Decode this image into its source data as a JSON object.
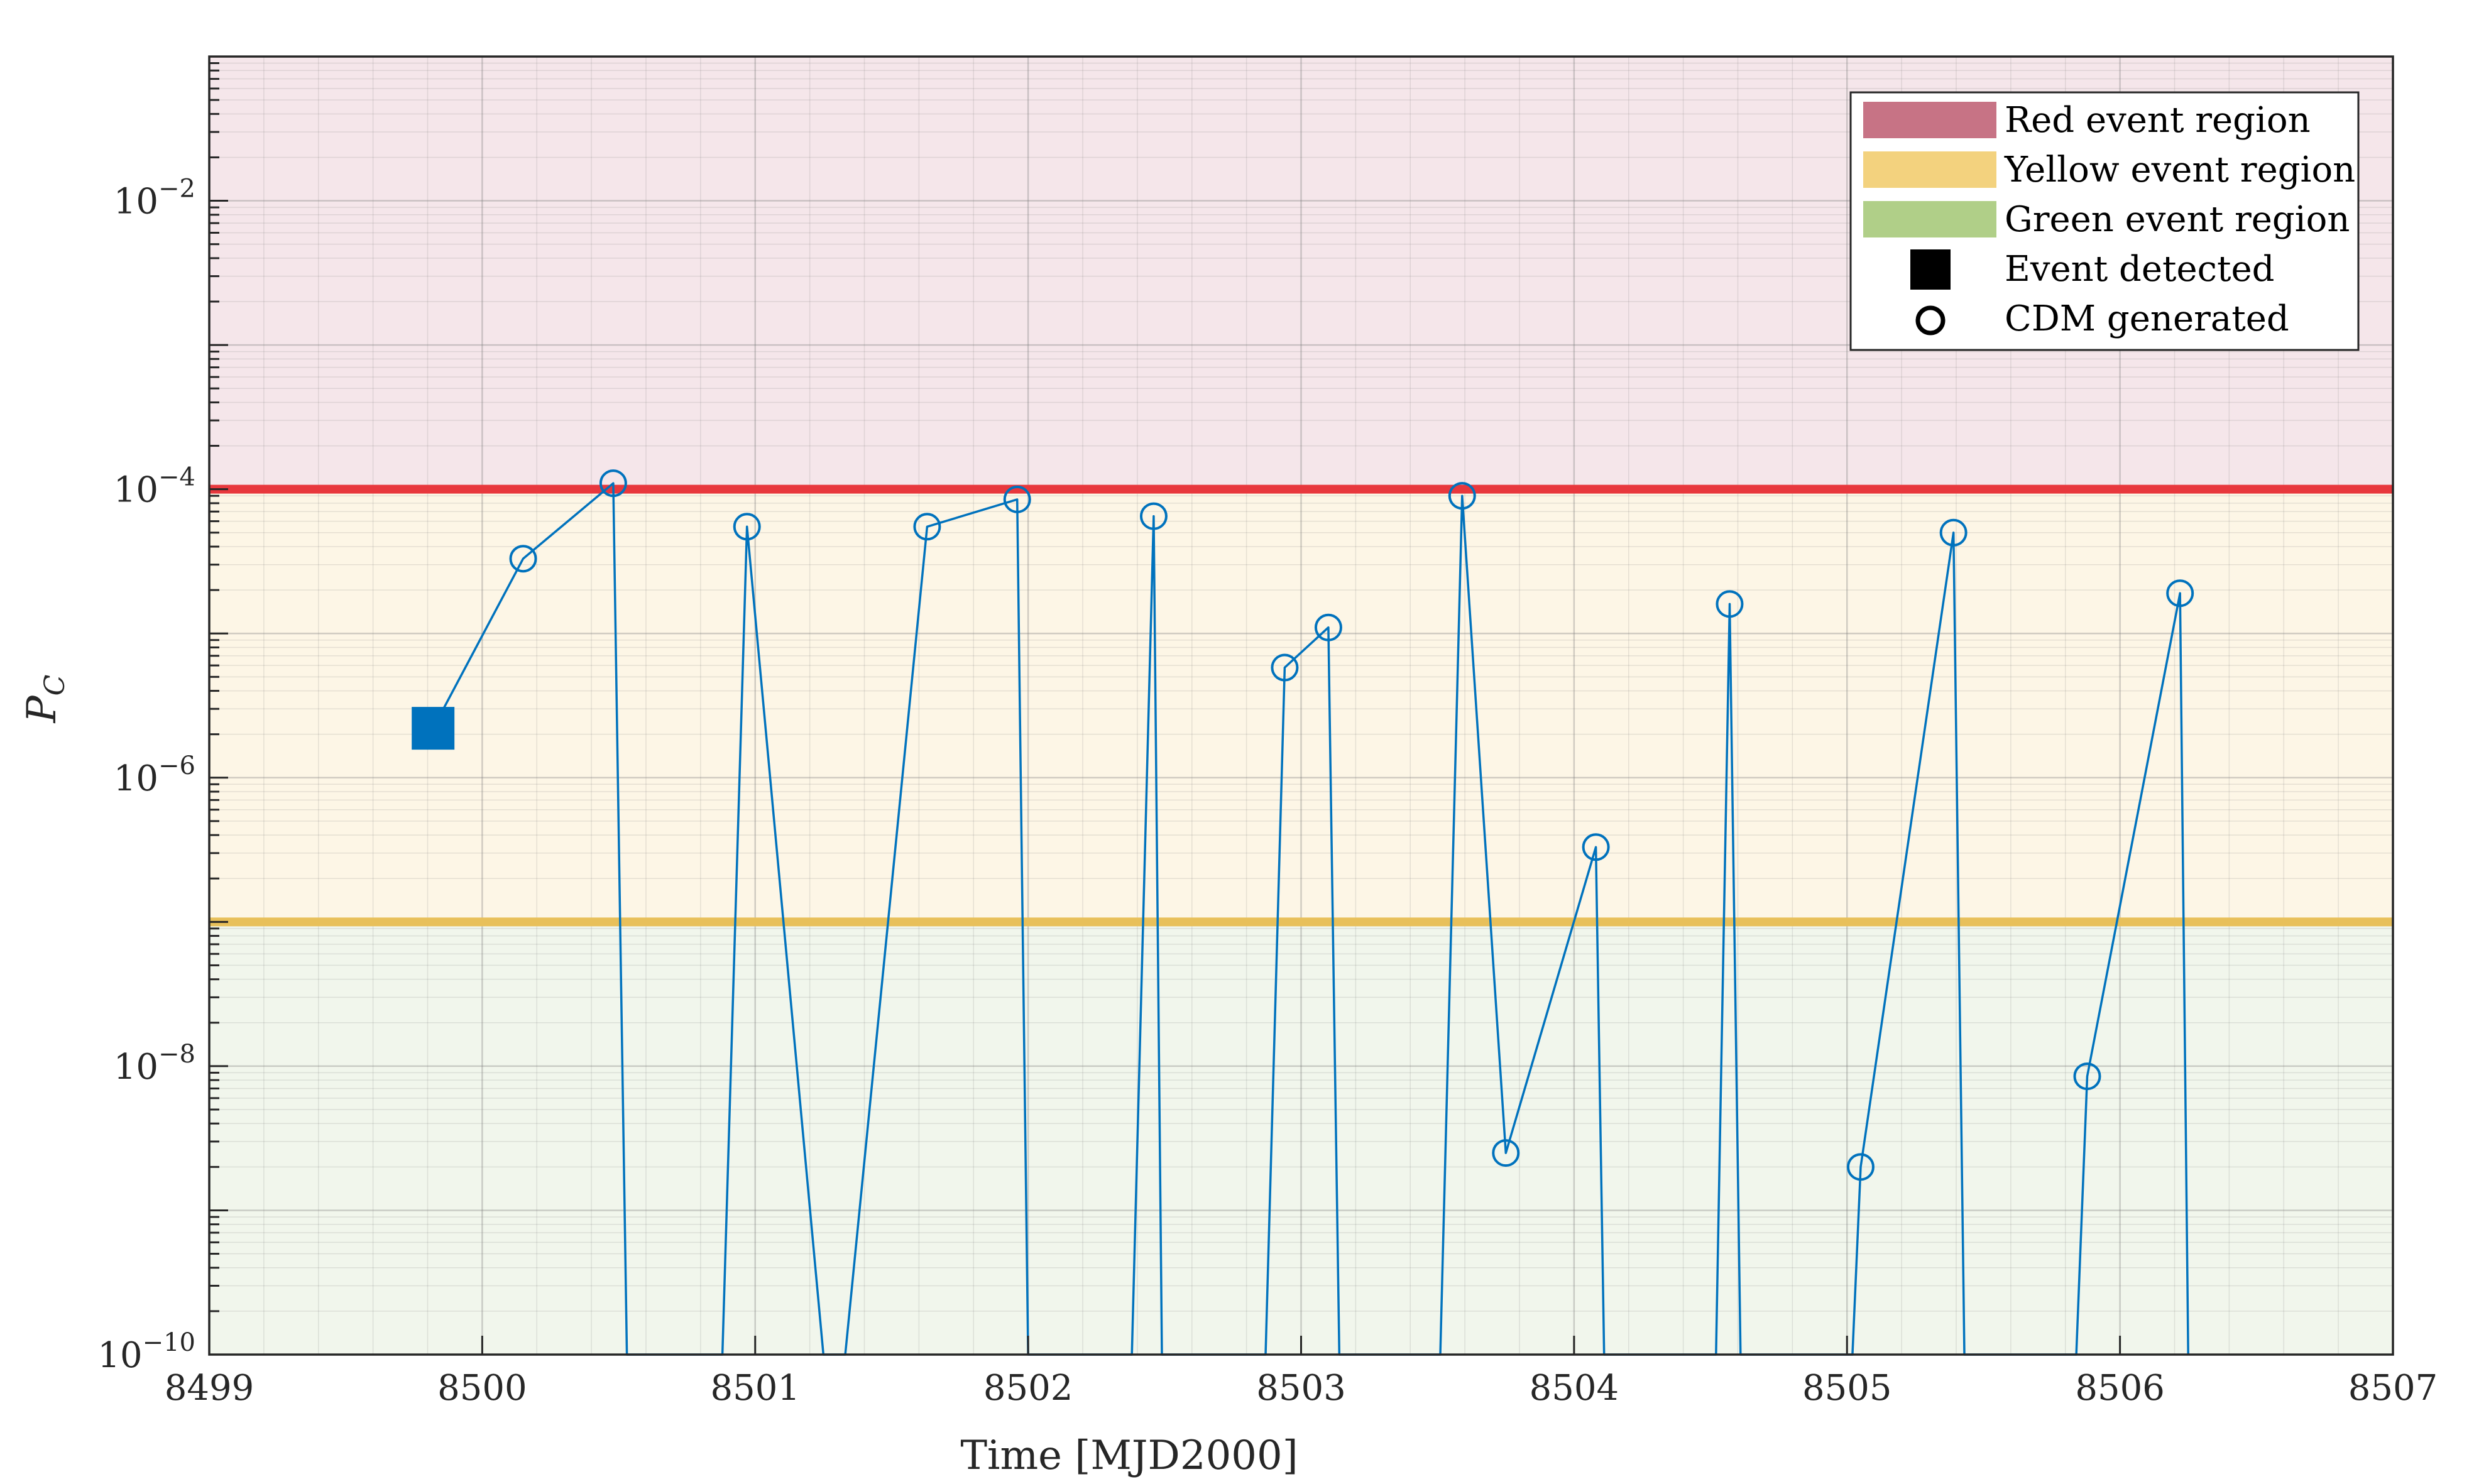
{
  "chart_data": {
    "type": "line",
    "xlabel": "Time [MJD2000]",
    "ylabel": "P",
    "ylabel_subscript": "C",
    "xlim": [
      8499,
      8507
    ],
    "ylim": [
      1e-10,
      0.1
    ],
    "yscale": "log",
    "grid": true,
    "x_ticks": [
      "8499",
      "8500",
      "8501",
      "8502",
      "8503",
      "8504",
      "8505",
      "8506",
      "8507"
    ],
    "y_ticks": [
      {
        "value": 1e-10,
        "base": "10",
        "exp": "−10"
      },
      {
        "value": 1e-08,
        "base": "10",
        "exp": "−8"
      },
      {
        "value": 1e-06,
        "base": "10",
        "exp": "−6"
      },
      {
        "value": 0.0001,
        "base": "10",
        "exp": "−4"
      },
      {
        "value": 0.01,
        "base": "10",
        "exp": "−2"
      }
    ],
    "regions": [
      {
        "name": "Red event region",
        "from": 0.0001,
        "to": 0.1,
        "fill": "#f5e6ea",
        "legend_color": "#c77385"
      },
      {
        "name": "Yellow event region",
        "from": 1e-07,
        "to": 0.0001,
        "fill": "#fdf6e6",
        "legend_color": "#f3d27e"
      },
      {
        "name": "Green event region",
        "from": 1e-10,
        "to": 1e-07,
        "fill": "#f1f6ec",
        "legend_color": "#b0cf88"
      }
    ],
    "thresholds": [
      {
        "value": 0.0001,
        "color": "#e8383d"
      },
      {
        "value": 1e-07,
        "color": "#e8c05a"
      }
    ],
    "series_color": "#0072bd",
    "event_detected": {
      "x": 8499.82,
      "y": 2.2e-06
    },
    "cdm_points": [
      {
        "x": 8500.15,
        "y": 3.3e-05
      },
      {
        "x": 8500.48,
        "y": 0.00011
      },
      {
        "x": 8500.97,
        "y": 5.5e-05
      },
      {
        "x": 8501.63,
        "y": 5.5e-05
      },
      {
        "x": 8501.96,
        "y": 8.5e-05
      },
      {
        "x": 8502.46,
        "y": 6.5e-05
      },
      {
        "x": 8502.94,
        "y": 5.8e-06
      },
      {
        "x": 8503.1,
        "y": 1.1e-05
      },
      {
        "x": 8503.59,
        "y": 9e-05
      },
      {
        "x": 8503.75,
        "y": 2.5e-09
      },
      {
        "x": 8504.08,
        "y": 3.3e-07
      },
      {
        "x": 8504.57,
        "y": 1.6e-05
      },
      {
        "x": 8505.05,
        "y": 2e-09
      },
      {
        "x": 8505.39,
        "y": 5e-05
      },
      {
        "x": 8505.88,
        "y": 8.5e-09
      },
      {
        "x": 8506.22,
        "y": 1.9e-05
      }
    ],
    "line_path": [
      {
        "x": 8499.82,
        "y": 2.2e-06
      },
      {
        "x": 8500.15,
        "y": 3.3e-05
      },
      {
        "x": 8500.48,
        "y": 0.00011
      },
      {
        "x": 8500.53,
        "y": 1e-10
      },
      {
        "x": 8500.88,
        "y": 1e-10
      },
      {
        "x": 8500.97,
        "y": 5.5e-05
      },
      {
        "x": 8501.25,
        "y": 1e-10
      },
      {
        "x": 8501.33,
        "y": 1e-10
      },
      {
        "x": 8501.63,
        "y": 5.5e-05
      },
      {
        "x": 8501.96,
        "y": 8.5e-05
      },
      {
        "x": 8502.0,
        "y": 1e-10
      },
      {
        "x": 8502.38,
        "y": 1e-10
      },
      {
        "x": 8502.46,
        "y": 6.5e-05
      },
      {
        "x": 8502.49,
        "y": 1e-10
      },
      {
        "x": 8502.87,
        "y": 1e-10
      },
      {
        "x": 8502.94,
        "y": 5.8e-06
      },
      {
        "x": 8503.1,
        "y": 1.1e-05
      },
      {
        "x": 8503.14,
        "y": 1e-10
      },
      {
        "x": 8503.51,
        "y": 1e-10
      },
      {
        "x": 8503.59,
        "y": 9e-05
      },
      {
        "x": 8503.75,
        "y": 2.5e-09
      },
      {
        "x": 8504.08,
        "y": 3.3e-07
      },
      {
        "x": 8504.11,
        "y": 1e-10
      },
      {
        "x": 8504.52,
        "y": 1e-10
      },
      {
        "x": 8504.57,
        "y": 1.6e-05
      },
      {
        "x": 8504.61,
        "y": 1e-10
      },
      {
        "x": 8505.02,
        "y": 1e-10
      },
      {
        "x": 8505.05,
        "y": 2e-09
      },
      {
        "x": 8505.39,
        "y": 5e-05
      },
      {
        "x": 8505.43,
        "y": 1e-10
      },
      {
        "x": 8505.84,
        "y": 1e-10
      },
      {
        "x": 8505.88,
        "y": 8.5e-09
      },
      {
        "x": 8506.22,
        "y": 1.9e-05
      },
      {
        "x": 8506.25,
        "y": 1e-10
      }
    ],
    "legend": {
      "placement": "top-right",
      "entries": [
        {
          "label": "Red event region",
          "kind": "patch",
          "color": "#c77385"
        },
        {
          "label": "Yellow event region",
          "kind": "patch",
          "color": "#f3d27e"
        },
        {
          "label": "Green event region",
          "kind": "patch",
          "color": "#b0cf88"
        },
        {
          "label": "Event detected",
          "kind": "square",
          "color": "#000000"
        },
        {
          "label": "CDM generated",
          "kind": "circle",
          "color": "#000000"
        }
      ]
    }
  }
}
